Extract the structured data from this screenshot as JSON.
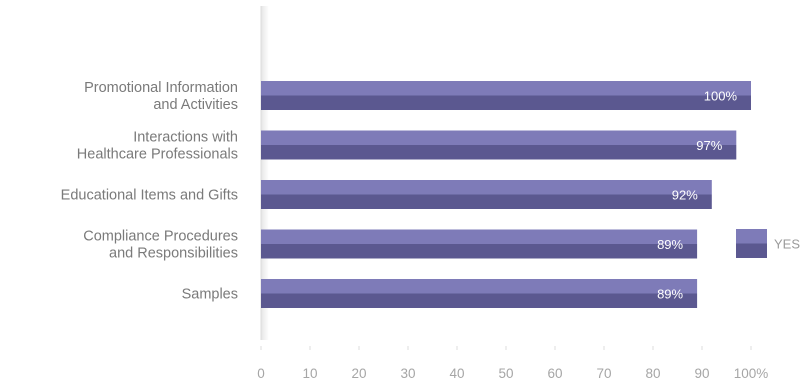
{
  "chart_data": {
    "type": "bar",
    "orientation": "horizontal",
    "categories": [
      [
        "Promotional Information",
        "and Activities"
      ],
      [
        "Interactions with",
        "Healthcare Professionals"
      ],
      [
        "Educational Items and Gifts"
      ],
      [
        "Compliance Procedures",
        "and Responsibilities"
      ],
      [
        "Samples"
      ]
    ],
    "series": [
      {
        "name": "YES",
        "values": [
          100,
          97,
          92,
          89,
          89
        ],
        "labels": [
          "100%",
          "97%",
          "92%",
          "89%",
          "89%"
        ]
      }
    ],
    "xlim": [
      0,
      100
    ],
    "xticks": [
      0,
      10,
      20,
      30,
      40,
      50,
      60,
      70,
      80,
      90,
      100
    ],
    "xtick_labels": [
      "0",
      "10",
      "20",
      "30",
      "40",
      "50",
      "60",
      "70",
      "80",
      "90",
      "100%"
    ],
    "title": "",
    "xlabel": "",
    "ylabel": "",
    "grid": false,
    "legend_position": "right",
    "colors": {
      "bar_top": "#7e7bb8",
      "bar_bottom": "#5b5890",
      "bar_label": "#ffffff",
      "category_text": "#7a7a7a",
      "tick_text": "#a6a6a6",
      "axis_line": "#dddddd",
      "legend_text": "#9a9a9a"
    }
  }
}
